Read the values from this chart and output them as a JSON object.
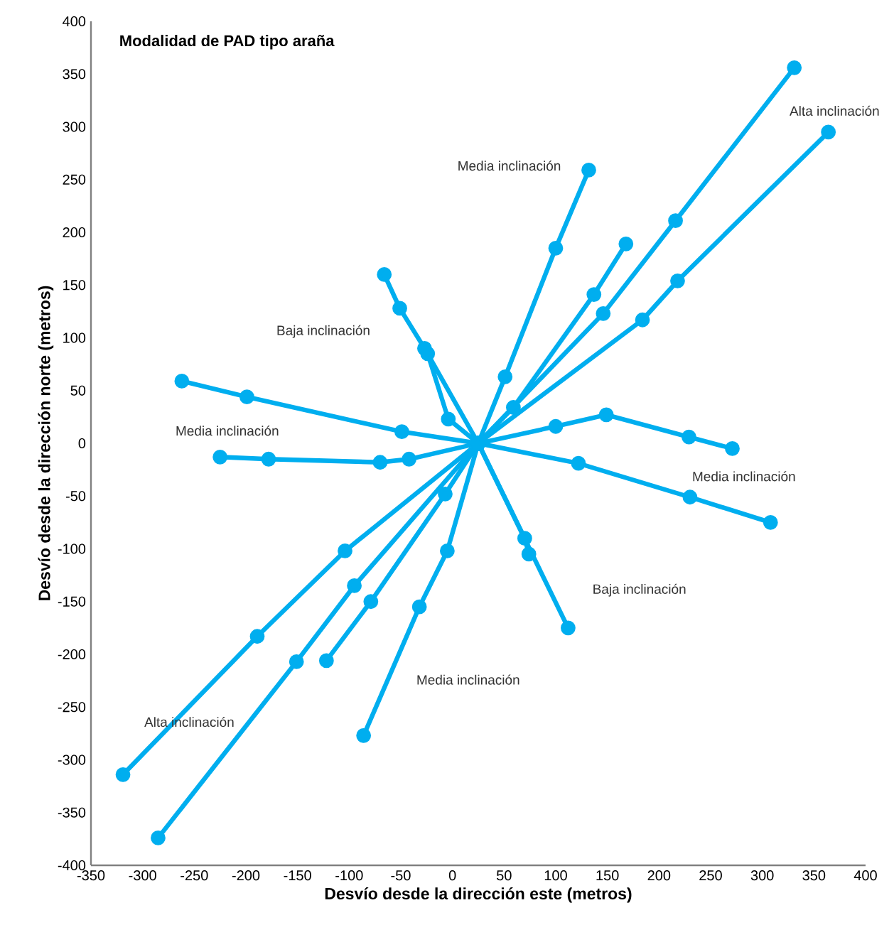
{
  "chart_data": {
    "type": "line",
    "title": "Modalidad de PAD tipo araña",
    "xlabel": "Desvío desde la dirección este (metros)",
    "ylabel": "Desvío desde la dirección norte (metros)",
    "xlim": [
      -350,
      400
    ],
    "ylim": [
      -400,
      400
    ],
    "xticks": [
      -350,
      -300,
      -250,
      -200,
      -150,
      -100,
      -50,
      0,
      50,
      100,
      150,
      200,
      250,
      300,
      350,
      400
    ],
    "yticks": [
      -400,
      -350,
      -300,
      -250,
      -200,
      -150,
      -100,
      -50,
      0,
      50,
      100,
      150,
      200,
      250,
      300,
      350,
      400
    ],
    "grid": false,
    "marker": "circle",
    "line_style": "solid",
    "series": [
      {
        "color": "#00aeef",
        "x": [
          25,
          146,
          216,
          331
        ],
        "values": [
          0,
          123,
          211,
          356
        ]
      },
      {
        "color": "#00aeef",
        "x": [
          25,
          184,
          218,
          364
        ],
        "values": [
          0,
          117,
          154,
          295
        ]
      },
      {
        "color": "#00aeef",
        "x": [
          25,
          51,
          100,
          132
        ],
        "values": [
          0,
          63,
          185,
          259
        ]
      },
      {
        "color": "#00aeef",
        "x": [
          25,
          59,
          137,
          168
        ],
        "values": [
          0,
          34,
          141,
          189
        ]
      },
      {
        "color": "#00aeef",
        "x": [
          25,
          100,
          149,
          229,
          271
        ],
        "values": [
          0,
          16,
          27,
          6,
          -5
        ]
      },
      {
        "color": "#00aeef",
        "x": [
          25,
          122,
          230,
          308
        ],
        "values": [
          0,
          -19,
          -51,
          -75
        ]
      },
      {
        "color": "#00aeef",
        "x": [
          25,
          70,
          74
        ],
        "values": [
          0,
          -90,
          -105
        ]
      },
      {
        "color": "#00aeef",
        "x": [
          25,
          112
        ],
        "values": [
          0,
          -175
        ]
      },
      {
        "color": "#00aeef",
        "x": [
          25,
          -27,
          -51,
          -66
        ],
        "values": [
          0,
          90,
          128,
          160
        ]
      },
      {
        "color": "#00aeef",
        "x": [
          25,
          -4,
          -24
        ],
        "values": [
          0,
          23,
          85
        ]
      },
      {
        "color": "#00aeef",
        "x": [
          25,
          -49,
          -199,
          -262
        ],
        "values": [
          0,
          11,
          44,
          59
        ]
      },
      {
        "color": "#00aeef",
        "x": [
          25,
          -42,
          -70,
          -178,
          -225
        ],
        "values": [
          0,
          -15,
          -18,
          -15,
          -13
        ]
      },
      {
        "color": "#00aeef",
        "x": [
          25,
          -104,
          -189,
          -319
        ],
        "values": [
          0,
          -102,
          -183,
          -314
        ]
      },
      {
        "color": "#00aeef",
        "x": [
          25,
          -95,
          -151,
          -285
        ],
        "values": [
          0,
          -135,
          -207,
          -374
        ]
      },
      {
        "color": "#00aeef",
        "x": [
          25,
          -7,
          -79,
          -122
        ],
        "values": [
          0,
          -48,
          -150,
          -206
        ]
      },
      {
        "color": "#00aeef",
        "x": [
          25,
          -5,
          -32,
          -86
        ],
        "values": [
          0,
          -102,
          -155,
          -277
        ]
      }
    ],
    "annotations": [
      "Media inclinación",
      "Alta inclinación",
      "Baja inclinación",
      "Media inclinación",
      "Media inclinación",
      "Baja inclinación",
      "Media inclinación",
      "Alta inclinación"
    ]
  }
}
